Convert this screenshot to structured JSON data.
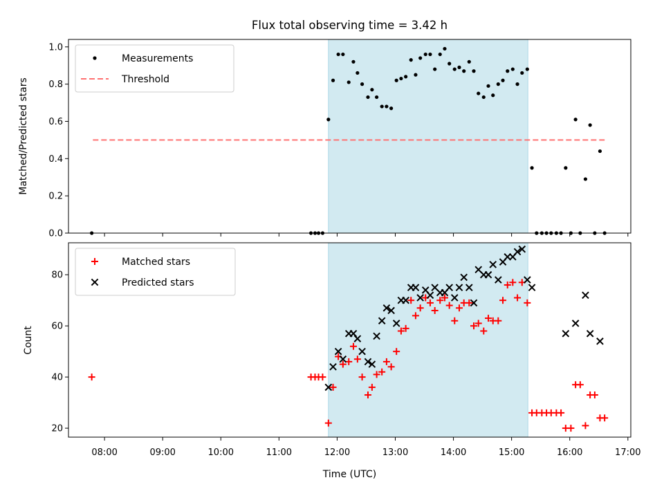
{
  "chart_data": [
    {
      "type": "scatter",
      "panel": "top",
      "title": "Flux total observing time = 3.42 h",
      "ylabel": "Matched/Predicted stars",
      "xlabel": "",
      "xlim": [
        7.38,
        17.05
      ],
      "ylim": [
        0.0,
        1.04
      ],
      "yticks": [
        0.0,
        0.2,
        0.4,
        0.6,
        0.8,
        1.0
      ],
      "ytick_labels": [
        "0.0",
        "0.2",
        "0.4",
        "0.6",
        "0.8",
        "1.0"
      ],
      "shaded_interval": [
        11.85,
        15.28
      ],
      "shade_color": "#add8e6",
      "legend": {
        "placement": "top-left",
        "entries": [
          "Measurements",
          "Threshold"
        ]
      },
      "threshold": {
        "name": "Threshold",
        "y": 0.5,
        "x_range": [
          7.8,
          16.6
        ],
        "color": "#ff7070",
        "style": "dashed"
      },
      "series": [
        {
          "name": "Measurements",
          "color": "#000000",
          "marker": "dot",
          "points": [
            [
              7.78,
              0.0
            ],
            [
              11.55,
              0.0
            ],
            [
              11.62,
              0.0
            ],
            [
              11.68,
              0.0
            ],
            [
              11.75,
              0.0
            ],
            [
              11.85,
              0.61
            ],
            [
              11.93,
              0.82
            ],
            [
              12.02,
              0.96
            ],
            [
              12.1,
              0.96
            ],
            [
              12.2,
              0.81
            ],
            [
              12.28,
              0.92
            ],
            [
              12.35,
              0.86
            ],
            [
              12.43,
              0.8
            ],
            [
              12.53,
              0.73
            ],
            [
              12.6,
              0.77
            ],
            [
              12.68,
              0.73
            ],
            [
              12.77,
              0.68
            ],
            [
              12.85,
              0.68
            ],
            [
              12.93,
              0.67
            ],
            [
              13.02,
              0.82
            ],
            [
              13.1,
              0.83
            ],
            [
              13.18,
              0.84
            ],
            [
              13.27,
              0.93
            ],
            [
              13.35,
              0.85
            ],
            [
              13.43,
              0.94
            ],
            [
              13.52,
              0.96
            ],
            [
              13.6,
              0.96
            ],
            [
              13.68,
              0.88
            ],
            [
              13.77,
              0.96
            ],
            [
              13.85,
              0.99
            ],
            [
              13.93,
              0.91
            ],
            [
              14.02,
              0.88
            ],
            [
              14.1,
              0.89
            ],
            [
              14.18,
              0.87
            ],
            [
              14.27,
              0.92
            ],
            [
              14.35,
              0.87
            ],
            [
              14.43,
              0.75
            ],
            [
              14.52,
              0.73
            ],
            [
              14.6,
              0.79
            ],
            [
              14.68,
              0.74
            ],
            [
              14.77,
              0.8
            ],
            [
              14.85,
              0.82
            ],
            [
              14.93,
              0.87
            ],
            [
              15.02,
              0.88
            ],
            [
              15.1,
              0.8
            ],
            [
              15.18,
              0.86
            ],
            [
              15.27,
              0.88
            ],
            [
              15.35,
              0.35
            ],
            [
              15.43,
              0.0
            ],
            [
              15.52,
              0.0
            ],
            [
              15.6,
              0.0
            ],
            [
              15.68,
              0.0
            ],
            [
              15.77,
              0.0
            ],
            [
              15.85,
              0.0
            ],
            [
              15.93,
              0.35
            ],
            [
              16.02,
              0.0
            ],
            [
              16.1,
              0.61
            ],
            [
              16.18,
              0.0
            ],
            [
              16.27,
              0.29
            ],
            [
              16.35,
              0.58
            ],
            [
              16.43,
              0.0
            ],
            [
              16.52,
              0.44
            ],
            [
              16.6,
              0.0
            ]
          ]
        }
      ]
    },
    {
      "type": "scatter",
      "panel": "bottom",
      "title": "",
      "ylabel": "Count",
      "xlabel": "Time (UTC)",
      "xlim": [
        7.38,
        17.05
      ],
      "ylim": [
        16.5,
        92.5
      ],
      "yticks": [
        20,
        40,
        60,
        80
      ],
      "ytick_labels": [
        "20",
        "40",
        "60",
        "80"
      ],
      "xticks": [
        8,
        9,
        10,
        11,
        12,
        13,
        14,
        15,
        16,
        17
      ],
      "xtick_labels": [
        "08:00",
        "09:00",
        "10:00",
        "11:00",
        "12:00",
        "13:00",
        "14:00",
        "15:00",
        "16:00",
        "17:00"
      ],
      "shaded_interval": [
        11.85,
        15.28
      ],
      "shade_color": "#add8e6",
      "legend": {
        "placement": "top-left",
        "entries": [
          "Matched stars",
          "Predicted stars"
        ]
      },
      "series": [
        {
          "name": "Matched stars",
          "color": "#ff0000",
          "marker": "plus",
          "points": [
            [
              7.78,
              40
            ],
            [
              11.55,
              40
            ],
            [
              11.62,
              40
            ],
            [
              11.68,
              40
            ],
            [
              11.75,
              40
            ],
            [
              11.85,
              22
            ],
            [
              11.93,
              36
            ],
            [
              12.02,
              48
            ],
            [
              12.1,
              45
            ],
            [
              12.2,
              46
            ],
            [
              12.28,
              52
            ],
            [
              12.35,
              47
            ],
            [
              12.43,
              40
            ],
            [
              12.53,
              33
            ],
            [
              12.6,
              36
            ],
            [
              12.68,
              41
            ],
            [
              12.77,
              42
            ],
            [
              12.85,
              46
            ],
            [
              12.93,
              44
            ],
            [
              13.02,
              50
            ],
            [
              13.1,
              58
            ],
            [
              13.18,
              59
            ],
            [
              13.27,
              70
            ],
            [
              13.35,
              64
            ],
            [
              13.43,
              67
            ],
            [
              13.52,
              71
            ],
            [
              13.6,
              69
            ],
            [
              13.68,
              66
            ],
            [
              13.77,
              70
            ],
            [
              13.85,
              71
            ],
            [
              13.93,
              68
            ],
            [
              14.02,
              62
            ],
            [
              14.1,
              67
            ],
            [
              14.18,
              69
            ],
            [
              14.27,
              69
            ],
            [
              14.35,
              60
            ],
            [
              14.43,
              61
            ],
            [
              14.52,
              58
            ],
            [
              14.6,
              63
            ],
            [
              14.68,
              62
            ],
            [
              14.77,
              62
            ],
            [
              14.85,
              70
            ],
            [
              14.93,
              76
            ],
            [
              15.02,
              77
            ],
            [
              15.1,
              71
            ],
            [
              15.18,
              77
            ],
            [
              15.27,
              69
            ],
            [
              15.35,
              26
            ],
            [
              15.43,
              26
            ],
            [
              15.52,
              26
            ],
            [
              15.6,
              26
            ],
            [
              15.68,
              26
            ],
            [
              15.77,
              26
            ],
            [
              15.85,
              26
            ],
            [
              15.93,
              20
            ],
            [
              16.02,
              20
            ],
            [
              16.1,
              37
            ],
            [
              16.18,
              37
            ],
            [
              16.27,
              21
            ],
            [
              16.35,
              33
            ],
            [
              16.43,
              33
            ],
            [
              16.52,
              24
            ],
            [
              16.6,
              24
            ]
          ]
        },
        {
          "name": "Predicted stars",
          "color": "#000000",
          "marker": "x",
          "points": [
            [
              11.85,
              36
            ],
            [
              11.93,
              44
            ],
            [
              12.02,
              50
            ],
            [
              12.1,
              47
            ],
            [
              12.2,
              57
            ],
            [
              12.28,
              57
            ],
            [
              12.35,
              55
            ],
            [
              12.43,
              50
            ],
            [
              12.53,
              46
            ],
            [
              12.6,
              45
            ],
            [
              12.68,
              56
            ],
            [
              12.77,
              62
            ],
            [
              12.85,
              67
            ],
            [
              12.93,
              66
            ],
            [
              13.02,
              61
            ],
            [
              13.1,
              70
            ],
            [
              13.18,
              70
            ],
            [
              13.27,
              75
            ],
            [
              13.35,
              75
            ],
            [
              13.43,
              71
            ],
            [
              13.52,
              74
            ],
            [
              13.6,
              72
            ],
            [
              13.68,
              75
            ],
            [
              13.77,
              73
            ],
            [
              13.85,
              73
            ],
            [
              13.93,
              75
            ],
            [
              14.02,
              71
            ],
            [
              14.1,
              75
            ],
            [
              14.18,
              79
            ],
            [
              14.27,
              75
            ],
            [
              14.35,
              69
            ],
            [
              14.43,
              82
            ],
            [
              14.52,
              80
            ],
            [
              14.6,
              80
            ],
            [
              14.68,
              84
            ],
            [
              14.77,
              78
            ],
            [
              14.85,
              85
            ],
            [
              14.93,
              87
            ],
            [
              15.02,
              87
            ],
            [
              15.1,
              89
            ],
            [
              15.18,
              90
            ],
            [
              15.27,
              78
            ],
            [
              15.35,
              75
            ],
            [
              15.93,
              57
            ],
            [
              16.1,
              61
            ],
            [
              16.27,
              72
            ],
            [
              16.35,
              57
            ],
            [
              16.52,
              54
            ]
          ]
        }
      ]
    }
  ]
}
